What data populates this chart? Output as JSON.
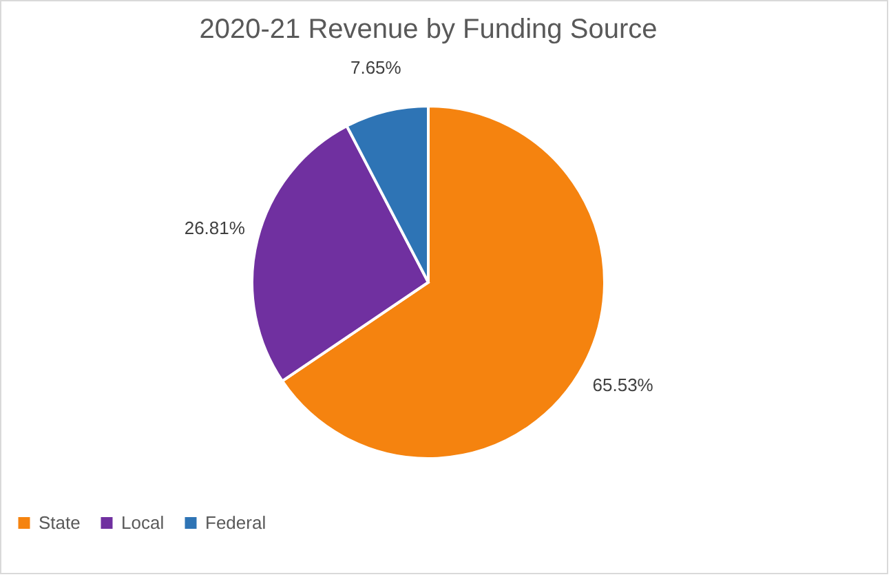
{
  "chart_data": {
    "type": "pie",
    "title": "2020-21 Revenue by Funding Source",
    "categories": [
      "State",
      "Local",
      "Federal"
    ],
    "values": [
      65.53,
      26.81,
      7.65
    ],
    "colors": [
      "#f5830f",
      "#7030a0",
      "#2e74b5"
    ],
    "value_labels": [
      "65.53%",
      "26.81%",
      "7.65%"
    ],
    "legend": "bottom"
  }
}
